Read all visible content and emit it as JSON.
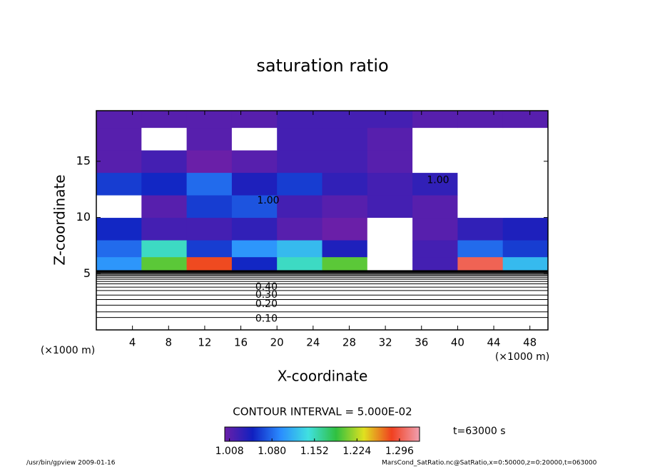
{
  "chart_data": {
    "type": "heatmap",
    "title": "saturation ratio",
    "xlabel": "X-coordinate",
    "ylabel": "Z-coordinate",
    "x_unit_left": "(×1000 m)",
    "x_unit_right": "(×1000 m)",
    "contour_interval": "CONTOUR INTERVAL = 5.000E-02",
    "time_label": "t=63000 s",
    "footer_left": "/usr/bin/gpview  2009-01-16",
    "footer_right": "MarsCond_SatRatio.nc@SatRatio,x=0:50000,z=0:20000,t=063000",
    "xlim": [
      0,
      50
    ],
    "ylim": [
      0,
      19.5
    ],
    "xticks": [
      4,
      8,
      12,
      16,
      20,
      24,
      28,
      32,
      36,
      40,
      44,
      48
    ],
    "yticks": [
      5,
      10,
      15
    ],
    "x_edges": [
      0,
      5,
      10,
      15,
      20,
      25,
      30,
      35,
      40,
      45,
      50
    ],
    "z_edges": [
      0,
      2,
      4,
      5.3,
      6.5,
      8,
      10,
      12,
      14,
      16,
      18,
      19.5
    ],
    "values": [
      [
        0.1,
        0.1,
        0.1,
        0.1,
        0.1,
        0.1,
        0.1,
        0.1,
        0.1,
        0.1
      ],
      [
        0.3,
        0.3,
        0.3,
        0.3,
        0.3,
        0.3,
        0.3,
        0.3,
        0.3,
        0.3
      ],
      [
        0.7,
        0.7,
        0.7,
        0.7,
        0.7,
        0.7,
        0.7,
        0.7,
        0.7,
        0.7
      ],
      [
        1.1,
        1.2,
        1.28,
        1.05,
        1.15,
        1.2,
        0.99,
        1.02,
        1.3,
        1.12
      ],
      [
        1.08,
        1.15,
        1.06,
        1.1,
        1.12,
        1.04,
        0.98,
        1.02,
        1.08,
        1.06
      ],
      [
        1.05,
        1.02,
        1.02,
        1.03,
        1.01,
        1.0,
        0.99,
        1.01,
        1.03,
        1.04
      ],
      [
        0.99,
        1.01,
        1.06,
        1.07,
        1.02,
        1.01,
        1.02,
        1.01,
        0.99,
        0.99
      ],
      [
        1.06,
        1.05,
        1.08,
        1.04,
        1.06,
        1.03,
        1.02,
        1.03,
        0.99,
        0.99
      ],
      [
        1.01,
        1.02,
        1.0,
        1.01,
        1.02,
        1.02,
        1.01,
        0.99,
        0.99,
        0.99
      ],
      [
        1.01,
        0.99,
        1.01,
        0.99,
        1.02,
        1.02,
        1.01,
        0.99,
        0.99,
        0.99
      ],
      [
        1.01,
        1.01,
        1.01,
        1.01,
        1.02,
        1.02,
        1.02,
        1.01,
        1.01,
        1.01
      ]
    ],
    "colormap": [
      "#6a1fa8",
      "#1020c0",
      "#2a8cff",
      "#40e0e0",
      "#30c040",
      "#e0e020",
      "#f04020",
      "#f0a0b0"
    ],
    "colorbar_lim": [
      1.0,
      1.33
    ],
    "colorbar_ticks": [
      1.008,
      {
        "value": 1.08,
        "label": "1.080"
      },
      1.152,
      1.224,
      1.296
    ],
    "lower_contours": {
      "levels": [
        0.05,
        0.1,
        0.15,
        0.2,
        0.25,
        0.3,
        0.35,
        0.4,
        0.45,
        0.5,
        0.55,
        0.6,
        0.65,
        0.7,
        0.75,
        0.8,
        0.85,
        0.9,
        0.95
      ],
      "z": [
        1.1,
        1.6,
        2.2,
        2.7,
        3.1,
        3.5,
        3.8,
        4.1,
        4.3,
        4.5,
        4.65,
        4.8,
        4.9,
        5.0,
        5.07,
        5.13,
        5.18,
        5.23,
        5.28
      ]
    },
    "contour_labels": [
      {
        "value": 0.1,
        "label": "0.10",
        "x": 17.6,
        "z": 1.0
      },
      {
        "value": 0.2,
        "label": "0.20",
        "x": 17.6,
        "z": 2.3
      },
      {
        "value": 0.3,
        "label": "0.30",
        "x": 17.6,
        "z": 3.1
      },
      {
        "value": 0.4,
        "label": "0.40",
        "x": 17.6,
        "z": 3.8
      },
      {
        "value": 1.0,
        "label": "1.00",
        "x": 17.8,
        "z": 11.5
      },
      {
        "value": 1.0,
        "label": "1.00",
        "x": 36.6,
        "z": 13.3
      }
    ]
  }
}
